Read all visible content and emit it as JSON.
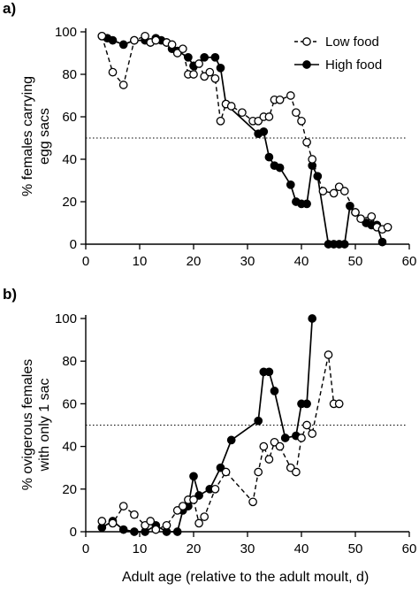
{
  "figure": {
    "panel_a_label": "a)",
    "panel_b_label": "b)",
    "xlabel": "Adult age (relative to the adult moult, d)"
  },
  "colors": {
    "line": "#000000",
    "open_fill": "#ffffff",
    "closed_fill": "#000000"
  },
  "chart_data": [
    {
      "type": "line",
      "panel": "a)",
      "title": "",
      "ylabel_line1": "% females carrying",
      "ylabel_line2": "egg sacs",
      "xlabel": "",
      "xlim": [
        0,
        60
      ],
      "ylim": [
        0,
        100
      ],
      "xticks": [
        0,
        10,
        20,
        30,
        40,
        50,
        60
      ],
      "yticks": [
        0,
        20,
        40,
        60,
        80,
        100
      ],
      "reference_line": {
        "y": 50,
        "style": "dotted"
      },
      "legend": {
        "position": "top-right"
      },
      "series": [
        {
          "name": "Low food",
          "marker": "open-circle",
          "line_style": "dashed",
          "points": [
            [
              3,
              98
            ],
            [
              5,
              81
            ],
            [
              7,
              75
            ],
            [
              9,
              96
            ],
            [
              11,
              98
            ],
            [
              12,
              95
            ],
            [
              13,
              96
            ],
            [
              15,
              95
            ],
            [
              16,
              94
            ],
            [
              17,
              90
            ],
            [
              18,
              92
            ],
            [
              19,
              80
            ],
            [
              20,
              80
            ],
            [
              21,
              85
            ],
            [
              22,
              79
            ],
            [
              23,
              81
            ],
            [
              24,
              78
            ],
            [
              25,
              58
            ],
            [
              26,
              66
            ],
            [
              27,
              65
            ],
            [
              29,
              62
            ],
            [
              31,
              58
            ],
            [
              32,
              58
            ],
            [
              33,
              60
            ],
            [
              34,
              60
            ],
            [
              35,
              68
            ],
            [
              36,
              68
            ],
            [
              38,
              70
            ],
            [
              39,
              62
            ],
            [
              40,
              58
            ],
            [
              41,
              48
            ],
            [
              42,
              40
            ],
            [
              44,
              25
            ],
            [
              46,
              24
            ],
            [
              47,
              27
            ],
            [
              48,
              25
            ],
            [
              50,
              15
            ],
            [
              51,
              12
            ],
            [
              53,
              13
            ],
            [
              54,
              8
            ],
            [
              55,
              7
            ],
            [
              56,
              8
            ]
          ]
        },
        {
          "name": "High food",
          "marker": "filled-circle",
          "line_style": "solid",
          "points": [
            [
              3,
              98
            ],
            [
              4,
              97
            ],
            [
              5,
              96
            ],
            [
              7,
              94
            ],
            [
              9,
              96
            ],
            [
              11,
              96
            ],
            [
              12,
              95
            ],
            [
              13,
              97
            ],
            [
              14,
              96
            ],
            [
              15,
              95
            ],
            [
              16,
              92
            ],
            [
              17,
              91
            ],
            [
              19,
              88
            ],
            [
              20,
              84
            ],
            [
              22,
              88
            ],
            [
              24,
              88
            ],
            [
              25,
              83
            ],
            [
              26,
              66
            ],
            [
              32,
              52
            ],
            [
              33,
              53
            ],
            [
              34,
              41
            ],
            [
              35,
              37
            ],
            [
              36,
              36
            ],
            [
              38,
              28
            ],
            [
              39,
              20
            ],
            [
              40,
              19
            ],
            [
              41,
              19
            ],
            [
              42,
              37
            ],
            [
              43,
              32
            ],
            [
              45,
              0
            ],
            [
              46,
              0
            ],
            [
              47,
              0
            ],
            [
              48,
              0
            ],
            [
              49,
              18
            ],
            [
              50,
              15
            ],
            [
              52,
              10
            ],
            [
              53,
              9
            ],
            [
              54,
              9
            ],
            [
              55,
              1
            ]
          ]
        }
      ]
    },
    {
      "type": "line",
      "panel": "b)",
      "title": "",
      "ylabel_line1": "% ovigerous females",
      "ylabel_line2": "with only 1 sac",
      "xlabel": "Adult age (relative to the adult moult, d)",
      "xlim": [
        0,
        60
      ],
      "ylim": [
        0,
        100
      ],
      "xticks": [
        0,
        10,
        20,
        30,
        40,
        50,
        60
      ],
      "yticks": [
        0,
        20,
        40,
        60,
        80,
        100
      ],
      "reference_line": {
        "y": 50,
        "style": "dotted"
      },
      "series": [
        {
          "name": "Low food",
          "marker": "open-circle",
          "line_style": "dashed",
          "points": [
            [
              3,
              5
            ],
            [
              5,
              4
            ],
            [
              7,
              12
            ],
            [
              9,
              8
            ],
            [
              11,
              3
            ],
            [
              12,
              5
            ],
            [
              13,
              1
            ],
            [
              15,
              3
            ],
            [
              17,
              10
            ],
            [
              18,
              12
            ],
            [
              19,
              15
            ],
            [
              20,
              15
            ],
            [
              21,
              4
            ],
            [
              22,
              7
            ],
            [
              24,
              20
            ],
            [
              26,
              28
            ],
            [
              31,
              14
            ],
            [
              32,
              28
            ],
            [
              33,
              40
            ],
            [
              34,
              34
            ],
            [
              35,
              42
            ],
            [
              36,
              40
            ],
            [
              38,
              30
            ],
            [
              39,
              28
            ],
            [
              40,
              44
            ],
            [
              41,
              50
            ],
            [
              42,
              46
            ],
            [
              45,
              83
            ],
            [
              46,
              60
            ],
            [
              47,
              60
            ]
          ]
        },
        {
          "name": "High food",
          "marker": "filled-circle",
          "line_style": "solid",
          "points": [
            [
              3,
              2
            ],
            [
              5,
              5
            ],
            [
              7,
              1
            ],
            [
              9,
              0
            ],
            [
              11,
              0
            ],
            [
              13,
              3
            ],
            [
              15,
              0
            ],
            [
              17,
              0
            ],
            [
              18,
              10
            ],
            [
              19,
              12
            ],
            [
              20,
              26
            ],
            [
              21,
              17
            ],
            [
              23,
              20
            ],
            [
              25,
              30
            ],
            [
              27,
              43
            ],
            [
              32,
              52
            ],
            [
              33,
              75
            ],
            [
              34,
              75
            ],
            [
              35,
              66
            ],
            [
              37,
              44
            ],
            [
              39,
              45
            ],
            [
              40,
              60
            ],
            [
              41,
              60
            ],
            [
              42,
              100
            ]
          ]
        }
      ]
    }
  ]
}
